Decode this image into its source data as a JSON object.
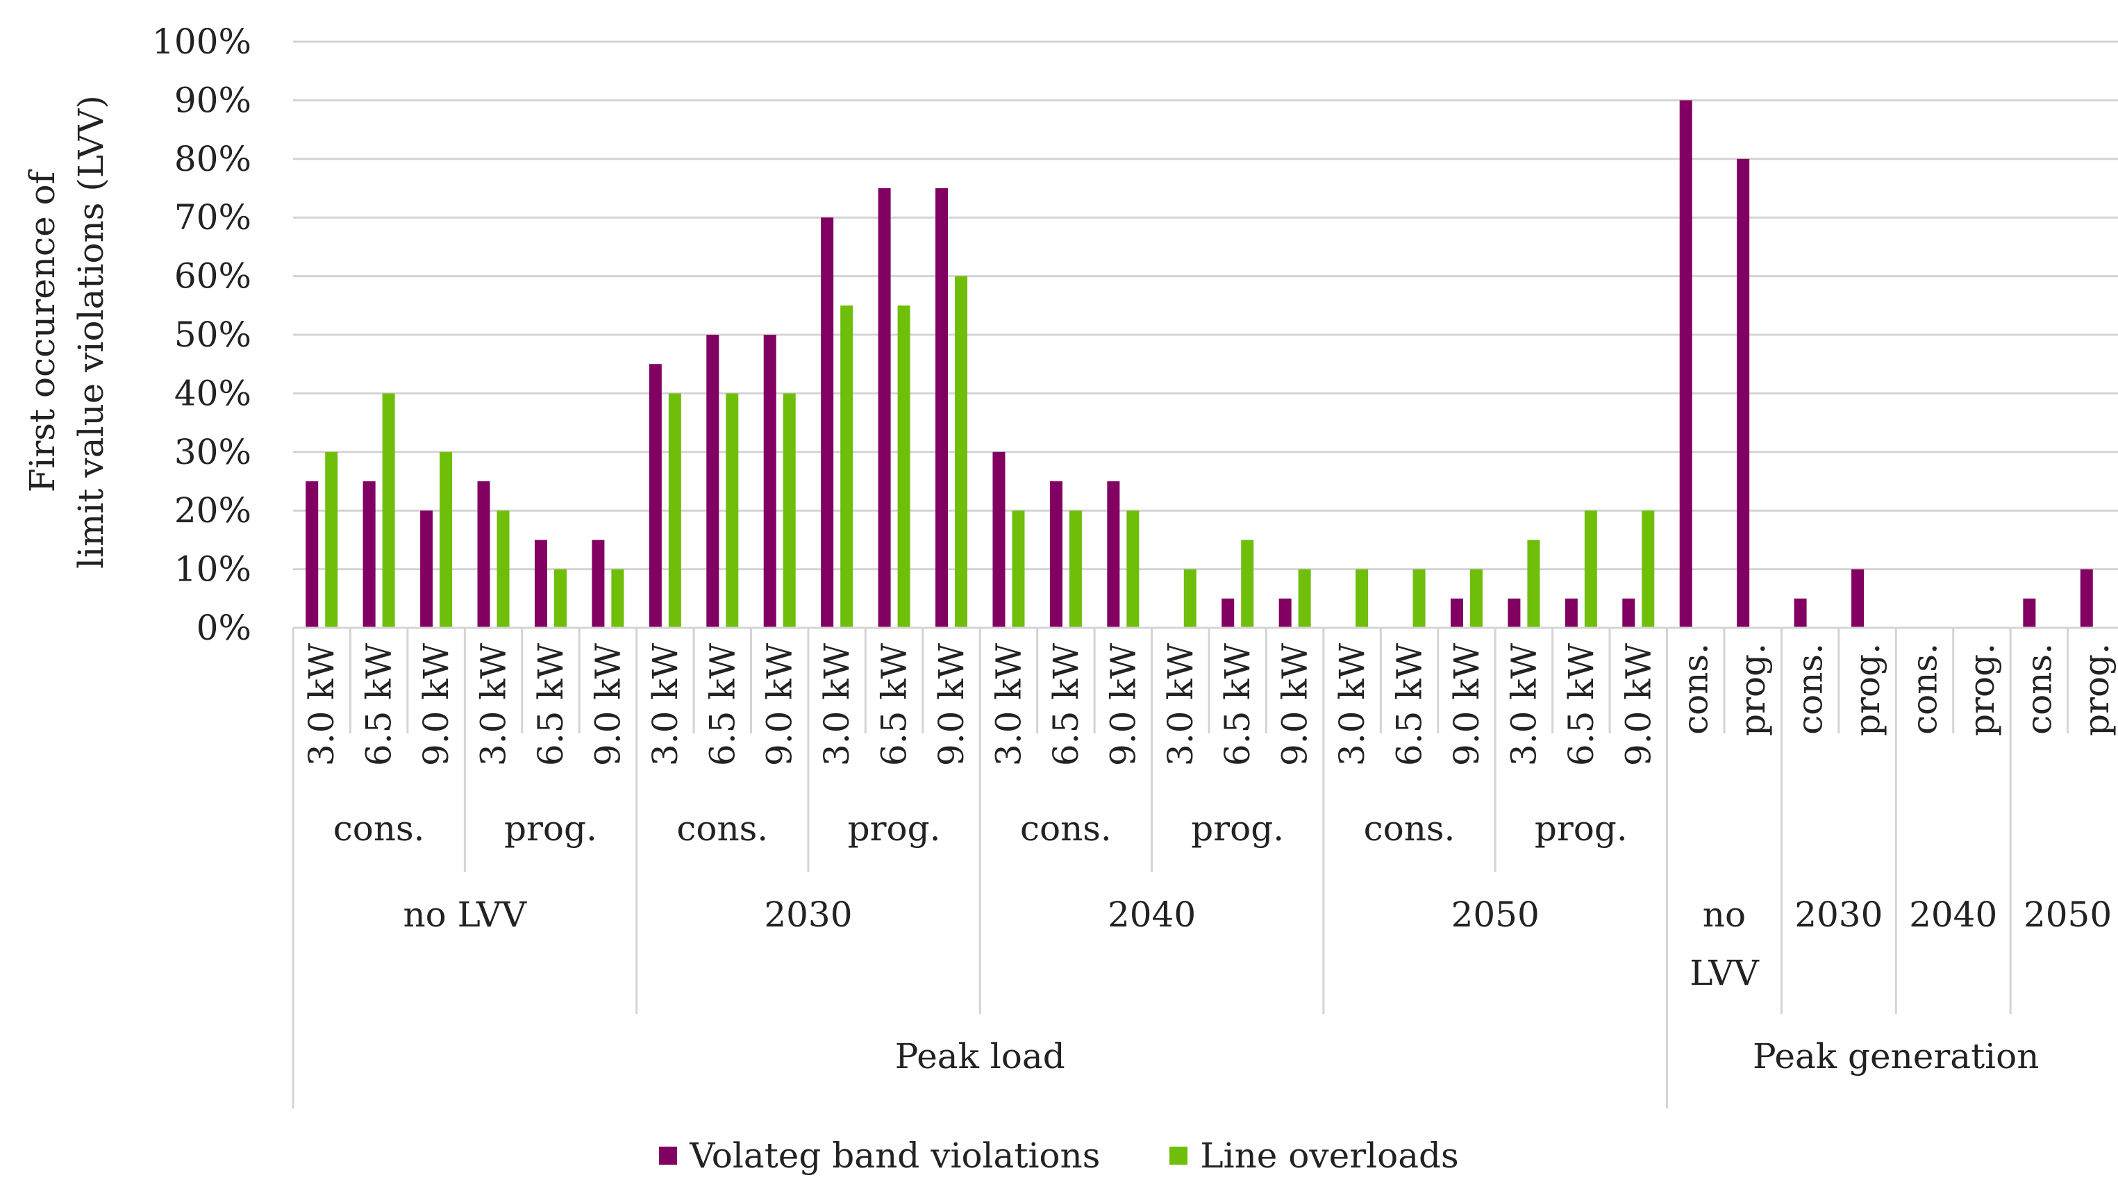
{
  "chart_data": {
    "type": "bar",
    "title": "",
    "ylabel": "First occurence of limit value violations (LVV)",
    "ylabel_lines": [
      "First occurence of",
      "limit value violations (LVV)"
    ],
    "xlabel": "",
    "ylim": [
      0,
      100
    ],
    "yticks": [
      "0%",
      "10%",
      "20%",
      "30%",
      "40%",
      "50%",
      "60%",
      "70%",
      "80%",
      "90%",
      "100%"
    ],
    "grid": true,
    "legend_position": "bottom",
    "series_colors": [
      "#820062",
      "#6fbe0a"
    ],
    "categories": [
      "3.0 kW",
      "6.5 kW",
      "9.0 kW",
      "3.0 kW",
      "6.5 kW",
      "9.0 kW",
      "3.0 kW",
      "6.5 kW",
      "9.0 kW",
      "3.0 kW",
      "6.5 kW",
      "9.0 kW",
      "3.0 kW",
      "6.5 kW",
      "9.0 kW",
      "3.0 kW",
      "6.5 kW",
      "9.0 kW",
      "3.0 kW",
      "6.5 kW",
      "9.0 kW",
      "3.0 kW",
      "6.5 kW",
      "9.0 kW",
      "cons.",
      "prog.",
      "cons.",
      "prog.",
      "cons.",
      "prog.",
      "cons.",
      "prog."
    ],
    "series": [
      {
        "name": "Volateg band violations",
        "values": [
          25,
          25,
          20,
          25,
          15,
          15,
          45,
          50,
          50,
          70,
          75,
          75,
          30,
          25,
          25,
          0,
          5,
          5,
          0,
          0,
          5,
          5,
          5,
          5,
          90,
          80,
          5,
          10,
          0,
          0,
          5,
          10
        ]
      },
      {
        "name": "Line overloads",
        "values": [
          30,
          40,
          30,
          20,
          10,
          10,
          40,
          40,
          40,
          55,
          55,
          60,
          20,
          20,
          20,
          10,
          15,
          10,
          10,
          10,
          10,
          15,
          20,
          20,
          0,
          0,
          0,
          0,
          0,
          0,
          0,
          0
        ]
      }
    ],
    "group_level_1": [
      {
        "label": "cons.",
        "span": 3
      },
      {
        "label": "prog.",
        "span": 3
      },
      {
        "label": "cons.",
        "span": 3
      },
      {
        "label": "prog.",
        "span": 3
      },
      {
        "label": "cons.",
        "span": 3
      },
      {
        "label": "prog.",
        "span": 3
      },
      {
        "label": "cons.",
        "span": 3
      },
      {
        "label": "prog.",
        "span": 3
      }
    ],
    "group_level_2": [
      {
        "label": "no LVV",
        "span": 6
      },
      {
        "label": "2030",
        "span": 6
      },
      {
        "label": "2040",
        "span": 6
      },
      {
        "label": "2050",
        "span": 6
      },
      {
        "label": "no LVV",
        "span": 2
      },
      {
        "label": "2030",
        "span": 2
      },
      {
        "label": "2040",
        "span": 2
      },
      {
        "label": "2050",
        "span": 2
      }
    ],
    "group_level_3": [
      {
        "label": "Peak load",
        "span": 24
      },
      {
        "label": "Peak generation",
        "span": 8
      }
    ]
  },
  "legend": {
    "items": [
      {
        "label": "Volateg band violations",
        "color": "#820062"
      },
      {
        "label": "Line overloads",
        "color": "#6fbe0a"
      }
    ]
  }
}
